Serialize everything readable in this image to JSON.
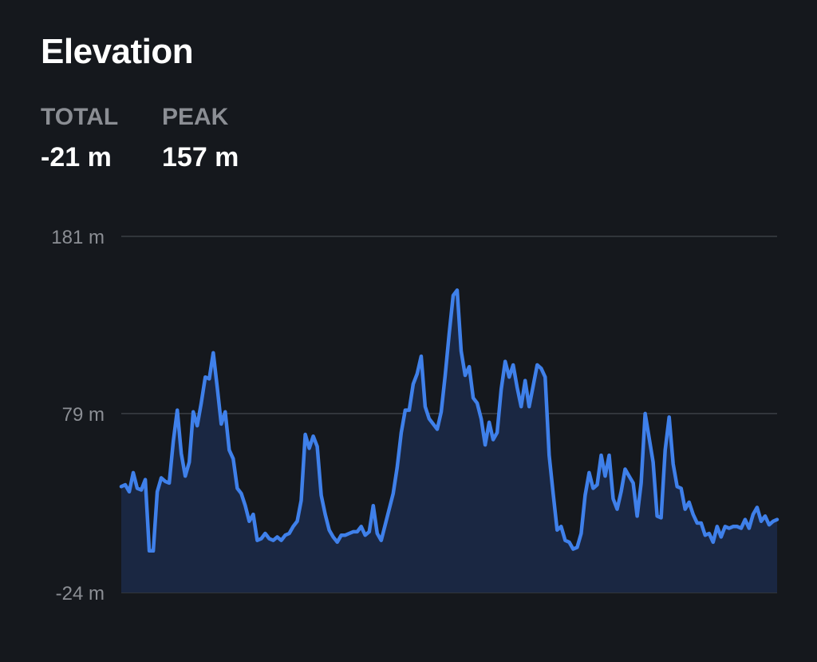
{
  "header": {
    "title": "Elevation"
  },
  "stats": [
    {
      "label": "TOTAL",
      "value": "-21 m"
    },
    {
      "label": "PEAK",
      "value": "157 m"
    }
  ],
  "colors": {
    "background": "#15181d",
    "line": "#3f80ea",
    "fill": "#1a2742",
    "grid": "#3b3f45",
    "muted_text": "#8b8e94"
  },
  "chart_data": {
    "type": "area",
    "title": "Elevation",
    "xlabel": "",
    "ylabel": "",
    "y_unit": "m",
    "ylim": [
      -24,
      181
    ],
    "yticks": [
      181,
      79,
      -24
    ],
    "ytick_labels": [
      "181 m",
      "79 m",
      "-24 m"
    ],
    "grid": true,
    "series": [
      {
        "values": [
          37,
          38,
          34,
          45,
          36,
          35,
          41,
          0,
          0,
          34,
          42,
          40,
          39,
          63,
          81,
          56,
          43,
          51,
          80,
          72,
          85,
          100,
          99,
          114,
          94,
          73,
          80,
          58,
          53,
          36,
          33,
          26,
          17,
          21,
          6,
          7,
          10,
          7,
          6,
          8,
          6,
          9,
          10,
          14,
          17,
          29,
          67,
          59,
          66,
          60,
          32,
          21,
          12,
          8,
          5,
          9,
          9,
          10,
          11,
          11,
          14,
          9,
          11,
          26,
          10,
          6,
          15,
          24,
          33,
          48,
          68,
          81,
          81,
          96,
          102,
          112,
          83,
          76,
          73,
          70,
          80,
          101,
          125,
          147,
          150,
          115,
          101,
          106,
          88,
          85,
          76,
          61,
          74,
          64,
          68,
          93,
          109,
          100,
          107,
          94,
          83,
          98,
          83,
          95,
          107,
          105,
          100,
          55,
          33,
          12,
          14,
          6,
          5,
          1,
          2,
          10,
          32,
          45,
          36,
          38,
          55,
          43,
          55,
          30,
          24,
          34,
          47,
          43,
          39,
          20,
          39,
          79,
          65,
          51,
          20,
          19,
          58,
          77,
          50,
          37,
          36,
          24,
          28,
          21,
          16,
          16,
          9,
          10,
          5,
          14,
          8,
          14,
          13,
          14,
          14,
          13,
          18,
          13,
          21,
          25,
          17,
          20,
          15,
          17,
          18
        ]
      }
    ]
  }
}
